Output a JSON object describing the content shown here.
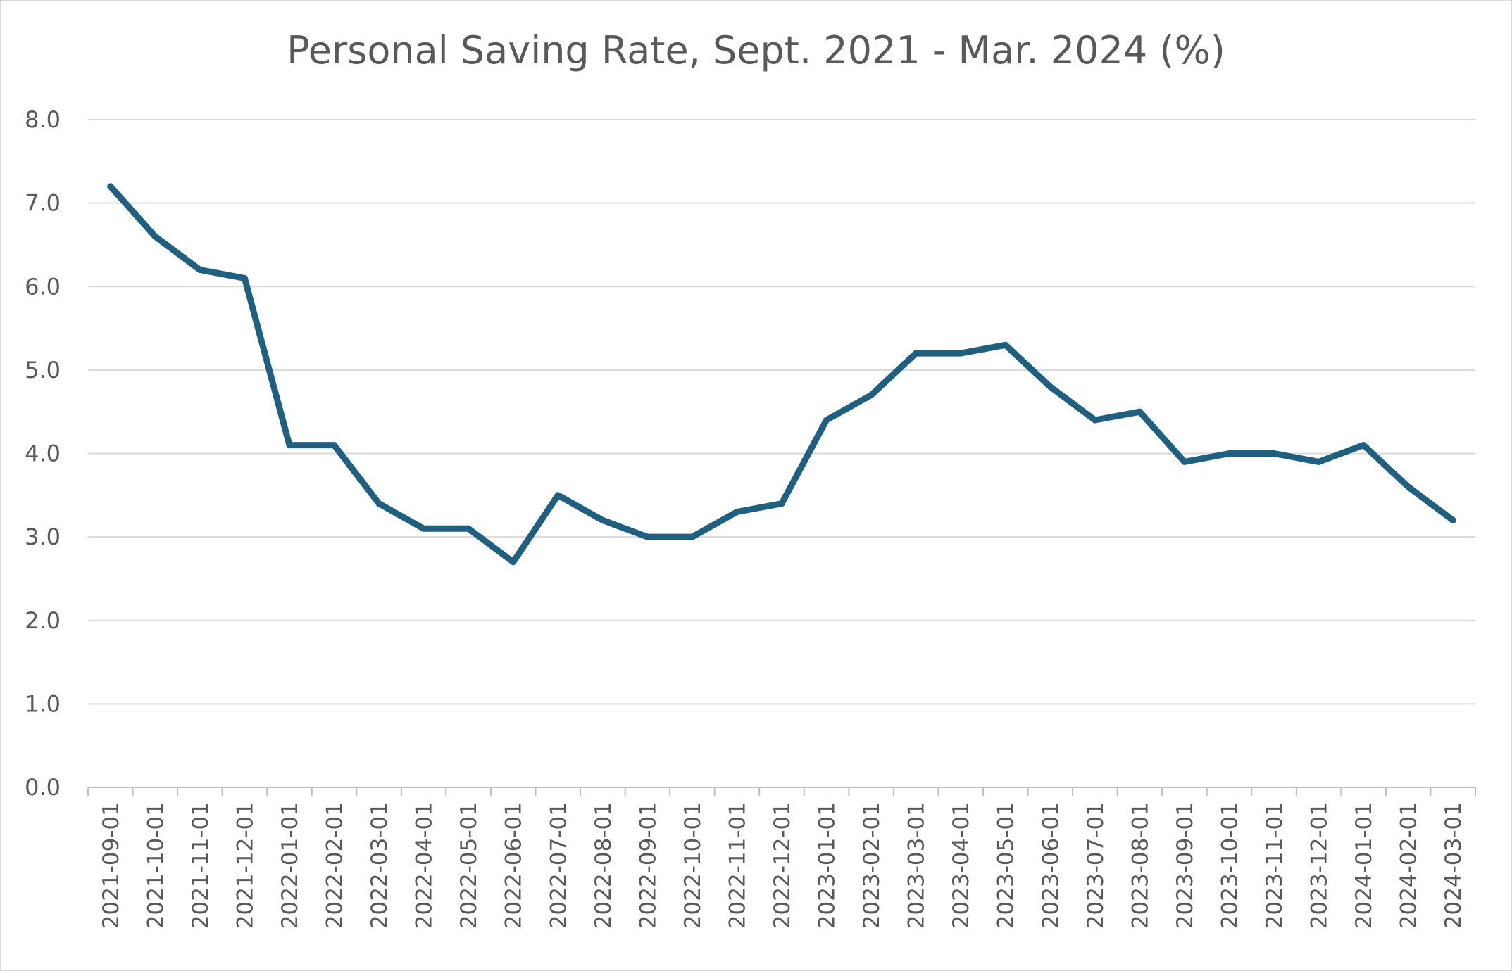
{
  "chart_data": {
    "type": "line",
    "title": "Personal Saving Rate, Sept. 2021 - Mar. 2024 (%)",
    "xlabel": "",
    "ylabel": "",
    "ylim": [
      0,
      8
    ],
    "yticks": [
      "0.0",
      "1.0",
      "2.0",
      "3.0",
      "4.0",
      "5.0",
      "6.0",
      "7.0",
      "8.0"
    ],
    "grid": true,
    "legend": "none",
    "categories": [
      "2021-09-01",
      "2021-10-01",
      "2021-11-01",
      "2021-12-01",
      "2022-01-01",
      "2022-02-01",
      "2022-03-01",
      "2022-04-01",
      "2022-05-01",
      "2022-06-01",
      "2022-07-01",
      "2022-08-01",
      "2022-09-01",
      "2022-10-01",
      "2022-11-01",
      "2022-12-01",
      "2023-01-01",
      "2023-02-01",
      "2023-03-01",
      "2023-04-01",
      "2023-05-01",
      "2023-06-01",
      "2023-07-01",
      "2023-08-01",
      "2023-09-01",
      "2023-10-01",
      "2023-11-01",
      "2023-12-01",
      "2024-01-01",
      "2024-02-01",
      "2024-03-01"
    ],
    "series": [
      {
        "color": "#1f5f80",
        "values": [
          7.2,
          6.6,
          6.2,
          6.1,
          4.1,
          4.1,
          3.4,
          3.1,
          3.1,
          2.7,
          3.5,
          3.2,
          3.0,
          3.0,
          3.3,
          3.4,
          4.4,
          4.7,
          5.2,
          5.2,
          5.3,
          4.8,
          4.4,
          4.5,
          3.9,
          4.0,
          4.0,
          3.9,
          4.1,
          3.6,
          3.2
        ]
      }
    ]
  }
}
